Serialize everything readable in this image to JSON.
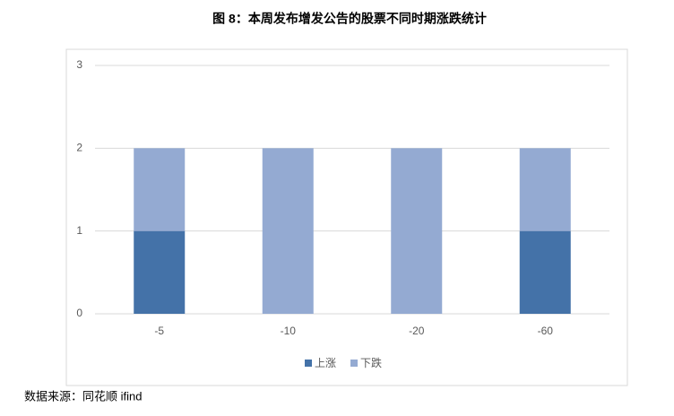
{
  "chart_data": {
    "type": "stacked_bar",
    "title": "图 8：本周发布增发公告的股票不同时期涨跌统计",
    "categories": [
      "-5",
      "-10",
      "-20",
      "-60"
    ],
    "series": [
      {
        "name": "上涨",
        "color": "#4472a8",
        "values": [
          1,
          0,
          0,
          1
        ]
      },
      {
        "name": "下跌",
        "color": "#94aad2",
        "values": [
          1,
          2,
          2,
          1
        ]
      }
    ],
    "ylim": [
      0,
      3
    ],
    "yticks": [
      0,
      1,
      2,
      3
    ],
    "grid": true,
    "legend": "bottom",
    "source": "数据来源：同花顺 ifind"
  }
}
